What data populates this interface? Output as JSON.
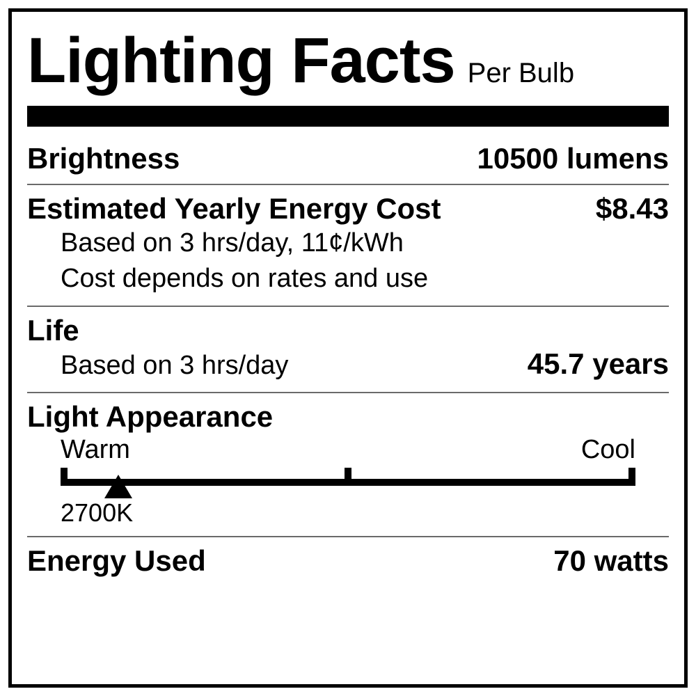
{
  "title": "Lighting Facts",
  "subtitle": "Per Bulb",
  "brightness": {
    "label": "Brightness",
    "value": "10500 lumens"
  },
  "cost": {
    "label": "Estimated Yearly Energy Cost",
    "value": "$8.43",
    "note1": "Based on 3 hrs/day, 11¢/kWh",
    "note2": "Cost depends on rates and use"
  },
  "life": {
    "label": "Life",
    "note": "Based on 3 hrs/day",
    "value": "45.7 years"
  },
  "appearance": {
    "label": "Light Appearance",
    "warm": "Warm",
    "cool": "Cool",
    "kelvin": "2700K",
    "pointer_percent": 10,
    "scale_color": "#000000"
  },
  "energy": {
    "label": "Energy Used",
    "value": "70 watts"
  },
  "colors": {
    "border": "#000000",
    "thin_rule": "#6a6a6a",
    "bg": "#ffffff"
  }
}
